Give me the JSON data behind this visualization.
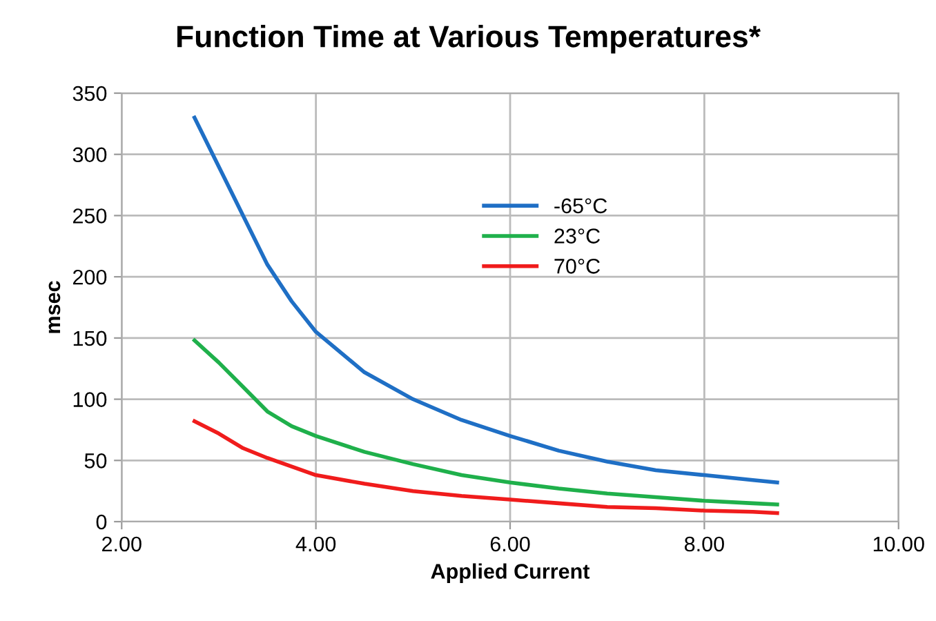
{
  "chart_data": {
    "type": "line",
    "title": "Function Time at Various Temperatures*",
    "xlabel": "Applied Current",
    "ylabel": "msec",
    "x": [
      2.75,
      3.0,
      3.25,
      3.5,
      3.75,
      4.0,
      4.5,
      5.0,
      5.5,
      6.0,
      6.5,
      7.0,
      7.5,
      8.0,
      8.5,
      8.75
    ],
    "series": [
      {
        "name": "-65°C",
        "color": "#1f6fc5",
        "values": [
          330,
          290,
          250,
          210,
          180,
          155,
          122,
          100,
          83,
          70,
          58,
          49,
          42,
          38,
          34,
          32
        ]
      },
      {
        "name": "23°C",
        "color": "#1fb04b",
        "values": [
          148,
          130,
          110,
          90,
          78,
          70,
          57,
          47,
          38,
          32,
          27,
          23,
          20,
          17,
          15,
          14
        ]
      },
      {
        "name": "70°C",
        "color": "#f01c1c",
        "values": [
          82,
          72,
          60,
          52,
          45,
          38,
          31,
          25,
          21,
          18,
          15,
          12,
          11,
          9,
          8,
          7
        ]
      }
    ],
    "xlim": [
      2,
      10
    ],
    "xticks": [
      {
        "value": 2,
        "label": "2.00"
      },
      {
        "value": 4,
        "label": "4.00"
      },
      {
        "value": 6,
        "label": "6.00"
      },
      {
        "value": 8,
        "label": "8.00"
      },
      {
        "value": 10,
        "label": "10.00"
      }
    ],
    "ylim": [
      0,
      350
    ],
    "yticks": [
      0,
      50,
      100,
      150,
      200,
      250,
      300,
      350
    ],
    "grid": true,
    "legend": "top right",
    "marker": "none",
    "line_style": "solid"
  }
}
